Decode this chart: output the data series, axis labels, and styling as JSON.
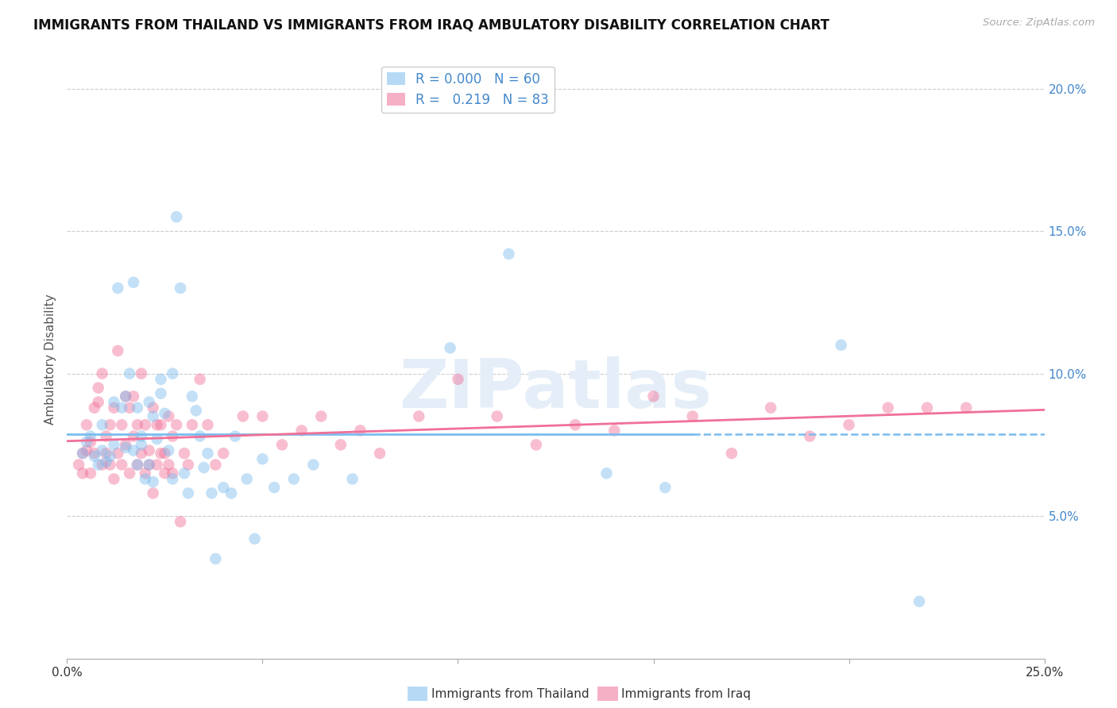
{
  "title": "IMMIGRANTS FROM THAILAND VS IMMIGRANTS FROM IRAQ AMBULATORY DISABILITY CORRELATION CHART",
  "source": "Source: ZipAtlas.com",
  "ylabel": "Ambulatory Disability",
  "xlim": [
    0.0,
    0.25
  ],
  "ylim": [
    0.0,
    0.21
  ],
  "xticks": [
    0.0,
    0.05,
    0.1,
    0.15,
    0.2,
    0.25
  ],
  "yticks": [
    0.05,
    0.1,
    0.15,
    0.2
  ],
  "xticklabels_show": [
    "0.0%",
    "",
    "",
    "",
    "",
    "25.0%"
  ],
  "yticklabels": [
    "5.0%",
    "10.0%",
    "15.0%",
    "20.0%"
  ],
  "thailand_color": "#7bbcee",
  "iraq_color": "#f07098",
  "watermark": "ZIPatlas",
  "thailand_points": [
    [
      0.004,
      0.072
    ],
    [
      0.005,
      0.076
    ],
    [
      0.006,
      0.078
    ],
    [
      0.007,
      0.071
    ],
    [
      0.008,
      0.068
    ],
    [
      0.009,
      0.073
    ],
    [
      0.009,
      0.082
    ],
    [
      0.01,
      0.069
    ],
    [
      0.011,
      0.071
    ],
    [
      0.012,
      0.075
    ],
    [
      0.012,
      0.09
    ],
    [
      0.013,
      0.13
    ],
    [
      0.014,
      0.088
    ],
    [
      0.015,
      0.074
    ],
    [
      0.015,
      0.092
    ],
    [
      0.016,
      0.1
    ],
    [
      0.017,
      0.132
    ],
    [
      0.017,
      0.073
    ],
    [
      0.018,
      0.088
    ],
    [
      0.018,
      0.068
    ],
    [
      0.019,
      0.075
    ],
    [
      0.019,
      0.078
    ],
    [
      0.02,
      0.063
    ],
    [
      0.021,
      0.068
    ],
    [
      0.021,
      0.09
    ],
    [
      0.022,
      0.062
    ],
    [
      0.022,
      0.085
    ],
    [
      0.023,
      0.077
    ],
    [
      0.024,
      0.093
    ],
    [
      0.024,
      0.098
    ],
    [
      0.025,
      0.086
    ],
    [
      0.026,
      0.073
    ],
    [
      0.027,
      0.1
    ],
    [
      0.027,
      0.063
    ],
    [
      0.028,
      0.155
    ],
    [
      0.029,
      0.13
    ],
    [
      0.03,
      0.065
    ],
    [
      0.031,
      0.058
    ],
    [
      0.032,
      0.092
    ],
    [
      0.033,
      0.087
    ],
    [
      0.034,
      0.078
    ],
    [
      0.035,
      0.067
    ],
    [
      0.036,
      0.072
    ],
    [
      0.037,
      0.058
    ],
    [
      0.038,
      0.035
    ],
    [
      0.04,
      0.06
    ],
    [
      0.042,
      0.058
    ],
    [
      0.043,
      0.078
    ],
    [
      0.046,
      0.063
    ],
    [
      0.048,
      0.042
    ],
    [
      0.05,
      0.07
    ],
    [
      0.053,
      0.06
    ],
    [
      0.058,
      0.063
    ],
    [
      0.063,
      0.068
    ],
    [
      0.073,
      0.063
    ],
    [
      0.098,
      0.109
    ],
    [
      0.113,
      0.142
    ],
    [
      0.138,
      0.065
    ],
    [
      0.153,
      0.06
    ],
    [
      0.198,
      0.11
    ],
    [
      0.218,
      0.02
    ]
  ],
  "iraq_points": [
    [
      0.003,
      0.068
    ],
    [
      0.004,
      0.072
    ],
    [
      0.004,
      0.065
    ],
    [
      0.005,
      0.073
    ],
    [
      0.005,
      0.082
    ],
    [
      0.006,
      0.076
    ],
    [
      0.006,
      0.065
    ],
    [
      0.007,
      0.088
    ],
    [
      0.007,
      0.072
    ],
    [
      0.008,
      0.09
    ],
    [
      0.008,
      0.095
    ],
    [
      0.009,
      0.1
    ],
    [
      0.009,
      0.068
    ],
    [
      0.01,
      0.078
    ],
    [
      0.01,
      0.072
    ],
    [
      0.011,
      0.082
    ],
    [
      0.011,
      0.068
    ],
    [
      0.012,
      0.088
    ],
    [
      0.012,
      0.063
    ],
    [
      0.013,
      0.108
    ],
    [
      0.013,
      0.072
    ],
    [
      0.014,
      0.082
    ],
    [
      0.014,
      0.068
    ],
    [
      0.015,
      0.092
    ],
    [
      0.015,
      0.075
    ],
    [
      0.016,
      0.088
    ],
    [
      0.016,
      0.065
    ],
    [
      0.017,
      0.092
    ],
    [
      0.017,
      0.078
    ],
    [
      0.018,
      0.082
    ],
    [
      0.018,
      0.068
    ],
    [
      0.019,
      0.1
    ],
    [
      0.019,
      0.072
    ],
    [
      0.02,
      0.065
    ],
    [
      0.02,
      0.082
    ],
    [
      0.021,
      0.073
    ],
    [
      0.021,
      0.068
    ],
    [
      0.022,
      0.088
    ],
    [
      0.022,
      0.058
    ],
    [
      0.023,
      0.082
    ],
    [
      0.023,
      0.068
    ],
    [
      0.024,
      0.072
    ],
    [
      0.024,
      0.082
    ],
    [
      0.025,
      0.065
    ],
    [
      0.025,
      0.072
    ],
    [
      0.026,
      0.085
    ],
    [
      0.026,
      0.068
    ],
    [
      0.027,
      0.078
    ],
    [
      0.027,
      0.065
    ],
    [
      0.028,
      0.082
    ],
    [
      0.029,
      0.048
    ],
    [
      0.03,
      0.072
    ],
    [
      0.031,
      0.068
    ],
    [
      0.032,
      0.082
    ],
    [
      0.034,
      0.098
    ],
    [
      0.036,
      0.082
    ],
    [
      0.038,
      0.068
    ],
    [
      0.04,
      0.072
    ],
    [
      0.045,
      0.085
    ],
    [
      0.05,
      0.085
    ],
    [
      0.055,
      0.075
    ],
    [
      0.06,
      0.08
    ],
    [
      0.065,
      0.085
    ],
    [
      0.07,
      0.075
    ],
    [
      0.075,
      0.08
    ],
    [
      0.08,
      0.072
    ],
    [
      0.09,
      0.085
    ],
    [
      0.1,
      0.098
    ],
    [
      0.11,
      0.085
    ],
    [
      0.12,
      0.075
    ],
    [
      0.13,
      0.082
    ],
    [
      0.14,
      0.08
    ],
    [
      0.15,
      0.092
    ],
    [
      0.16,
      0.085
    ],
    [
      0.17,
      0.072
    ],
    [
      0.18,
      0.088
    ],
    [
      0.19,
      0.078
    ],
    [
      0.2,
      0.082
    ],
    [
      0.21,
      0.088
    ],
    [
      0.22,
      0.088
    ],
    [
      0.23,
      0.088
    ]
  ],
  "background_color": "#ffffff",
  "grid_color": "#cccccc",
  "right_ytick_color": "#4488cc",
  "title_fontsize": 12,
  "axis_label_fontsize": 11,
  "tick_fontsize": 11
}
